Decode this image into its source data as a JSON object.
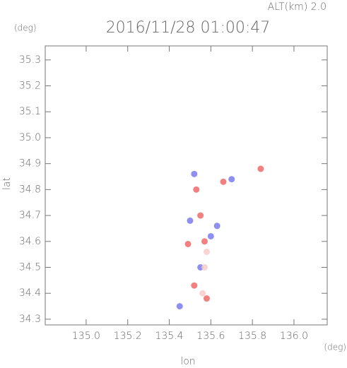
{
  "altitude_label": "ALT(km) 2.0",
  "chart_data": {
    "type": "scatter",
    "title": "2016/11/28 01:00:47",
    "x_label": "lon",
    "y_label": "lat",
    "x_unit": "(deg)",
    "y_unit": "(deg)",
    "xlim": [
      134.803,
      136.16
    ],
    "ylim": [
      34.278,
      35.354
    ],
    "xticks": [
      {
        "value": 135.0,
        "label": "135.0"
      },
      {
        "value": 135.2,
        "label": "135.2"
      },
      {
        "value": 135.4,
        "label": "135.4"
      },
      {
        "value": 135.6,
        "label": "135.6"
      },
      {
        "value": 135.8,
        "label": "135.8"
      },
      {
        "value": 136.0,
        "label": "136.0"
      }
    ],
    "yticks": [
      {
        "value": 34.3,
        "label": "34.3"
      },
      34.4,
      34.5,
      34.6,
      34.7,
      34.8,
      34.9,
      {
        "value": 35.0,
        "label": "35.0"
      },
      35.1,
      35.2,
      35.3
    ],
    "series": [
      {
        "color": "#f06a6a",
        "x": [
          135.57,
          135.49,
          135.84,
          135.52,
          135.58,
          135.55,
          135.66,
          135.53
        ],
        "values": [
          34.6,
          34.59,
          34.88,
          34.43,
          34.38,
          34.7,
          34.83,
          34.8
        ]
      },
      {
        "color": "#7b7bf0",
        "x": [
          135.5,
          135.6,
          135.45,
          135.52,
          135.7,
          135.55,
          135.63
        ],
        "values": [
          34.68,
          34.62,
          34.35,
          34.86,
          34.84,
          34.5,
          34.66
        ]
      },
      {
        "color": "#f7cccc",
        "x": [
          135.56,
          135.57,
          135.58
        ],
        "values": [
          34.4,
          34.5,
          34.56
        ]
      }
    ]
  }
}
